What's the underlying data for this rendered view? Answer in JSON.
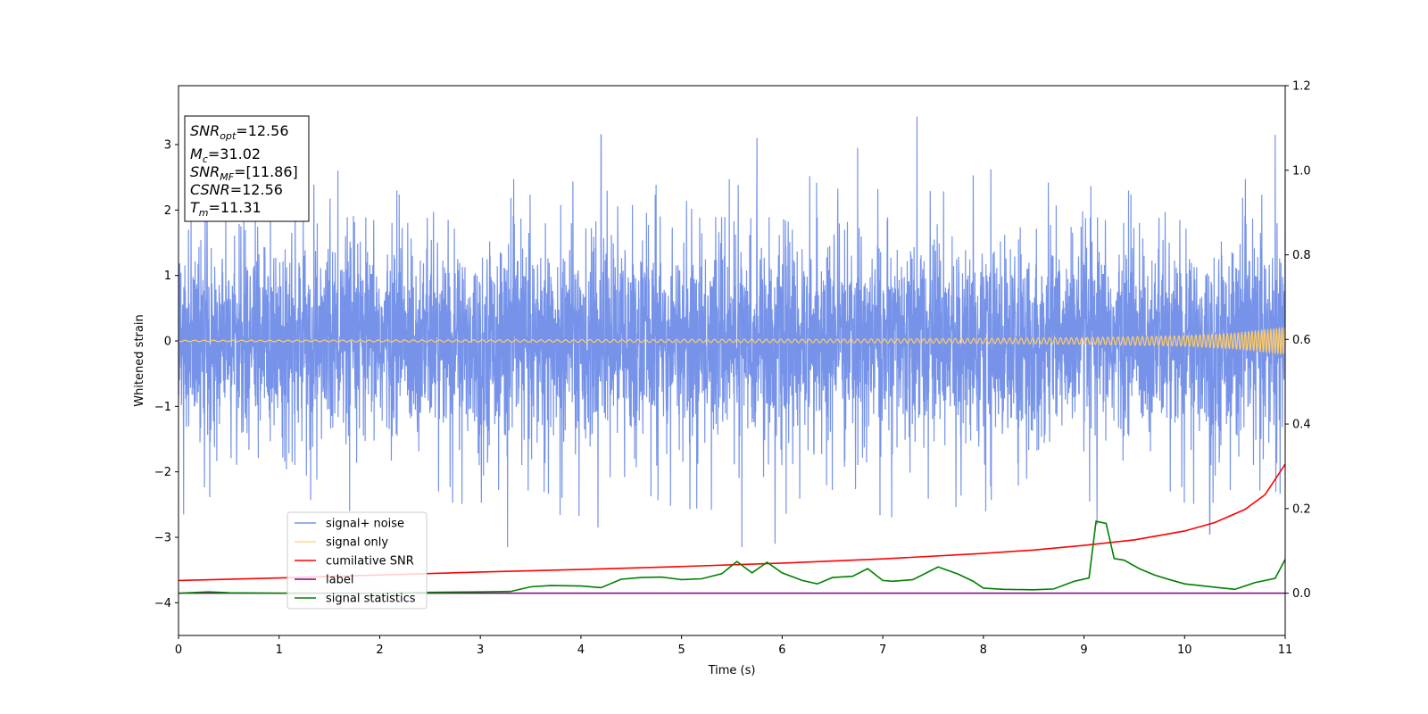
{
  "chart_data": {
    "type": "line",
    "xlabel": "Time (s)",
    "ylabel": "Whitened strain",
    "xlim": [
      0,
      11
    ],
    "ylim_left": [
      -4.5,
      3.9
    ],
    "ylim_right": [
      -0.1,
      1.2
    ],
    "xticks": [
      "0",
      "1",
      "2",
      "3",
      "4",
      "5",
      "6",
      "7",
      "8",
      "9",
      "10",
      "11"
    ],
    "yticks_left": [
      "3",
      "2",
      "1",
      "0",
      "−1",
      "−2",
      "−3",
      "−4"
    ],
    "yticks_left_values": [
      3,
      2,
      1,
      0,
      -1,
      -2,
      -3,
      -4
    ],
    "yticks_right": [
      "1.2",
      "1.0",
      "0.8",
      "0.6",
      "0.4",
      "0.2",
      "0.0"
    ],
    "yticks_right_values": [
      1.2,
      1.0,
      0.8,
      0.6,
      0.4,
      0.2,
      0.0
    ],
    "grid": false,
    "legend_position": "lower-left",
    "info_box": [
      {
        "symbol": "SNR",
        "sub": "opt",
        "value": "=12.56"
      },
      {
        "symbol": "M",
        "sub": "c",
        "value": "=31.02"
      },
      {
        "symbol": "SNR",
        "sub": "MF",
        "value": "=[11.86]"
      },
      {
        "symbol": "CSNR",
        "sub": "",
        "value": "=12.56"
      },
      {
        "symbol": "T",
        "sub": "m",
        "value": "=11.31"
      }
    ],
    "series": [
      {
        "name": "signal+ noise",
        "axis": "left",
        "color": "#4169e1",
        "opacity": 0.72,
        "noise_band_min": -1.9,
        "noise_band_max": 1.9,
        "notable_peaks": [
          [
            0.1,
            1.7
          ],
          [
            1.7,
            2.85
          ],
          [
            4.2,
            3.15
          ],
          [
            5.75,
            3.1
          ],
          [
            6.75,
            2.95
          ],
          [
            7.34,
            3.43
          ],
          [
            10.9,
            3.15
          ],
          [
            11.0,
            2.55
          ]
        ],
        "notable_troughs": [
          [
            0.05,
            -2.65
          ],
          [
            1.7,
            -2.6
          ],
          [
            3.27,
            -3.15
          ],
          [
            4.17,
            -2.85
          ],
          [
            5.6,
            -3.15
          ],
          [
            5.93,
            -3.1
          ],
          [
            9.13,
            -2.8
          ],
          [
            10.25,
            -2.95
          ]
        ]
      },
      {
        "name": "signal only",
        "axis": "left",
        "color": "#ffcc66",
        "chirp_envelope": [
          [
            0,
            0.01
          ],
          [
            4,
            0.02
          ],
          [
            7,
            0.03
          ],
          [
            9,
            0.05
          ],
          [
            10,
            0.08
          ],
          [
            10.5,
            0.12
          ],
          [
            11,
            0.2
          ]
        ]
      },
      {
        "name": "cumilative SNR",
        "axis": "right",
        "color": "#ff0000",
        "x": [
          0,
          1,
          2,
          3,
          4,
          5,
          6,
          7,
          8,
          8.5,
          9,
          9.5,
          10,
          10.3,
          10.6,
          10.8,
          11
        ],
        "values": [
          0.03,
          0.036,
          0.043,
          0.05,
          0.056,
          0.063,
          0.071,
          0.081,
          0.094,
          0.102,
          0.113,
          0.126,
          0.147,
          0.167,
          0.198,
          0.233,
          0.305
        ]
      },
      {
        "name": "label",
        "axis": "right",
        "color": "#800080",
        "x": [
          0,
          11
        ],
        "values": [
          0.0,
          0.0
        ]
      },
      {
        "name": "signal statistics",
        "axis": "right",
        "color": "#008000",
        "x": [
          0,
          0.3,
          0.5,
          1,
          2,
          2.5,
          3,
          3.3,
          3.5,
          3.7,
          4,
          4.2,
          4.4,
          4.6,
          4.8,
          5,
          5.2,
          5.4,
          5.55,
          5.7,
          5.85,
          6,
          6.2,
          6.35,
          6.5,
          6.7,
          6.85,
          7,
          7.1,
          7.3,
          7.55,
          7.75,
          7.9,
          8,
          8.2,
          8.5,
          8.7,
          8.9,
          9.05,
          9.12,
          9.22,
          9.3,
          9.4,
          9.55,
          9.7,
          9.85,
          10,
          10.3,
          10.5,
          10.7,
          10.9,
          11
        ],
        "values": [
          0.0,
          0.003,
          0.001,
          0.0,
          0.0,
          0.002,
          0.003,
          0.004,
          0.015,
          0.018,
          0.017,
          0.013,
          0.033,
          0.037,
          0.038,
          0.032,
          0.034,
          0.046,
          0.075,
          0.048,
          0.073,
          0.048,
          0.03,
          0.022,
          0.037,
          0.04,
          0.058,
          0.03,
          0.028,
          0.032,
          0.062,
          0.045,
          0.028,
          0.012,
          0.009,
          0.008,
          0.01,
          0.028,
          0.036,
          0.17,
          0.165,
          0.082,
          0.078,
          0.058,
          0.043,
          0.032,
          0.022,
          0.014,
          0.009,
          0.025,
          0.035,
          0.08
        ]
      }
    ]
  }
}
